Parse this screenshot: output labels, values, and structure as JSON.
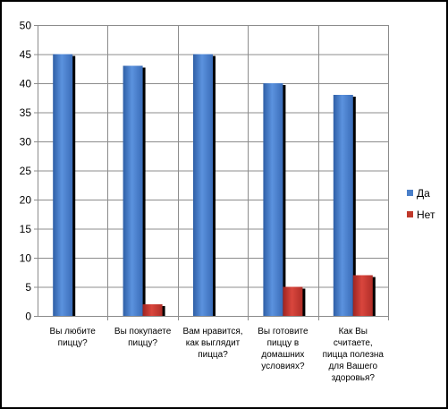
{
  "chart_data": {
    "type": "bar",
    "categories": [
      [
        "Вы любите",
        "пиццу?"
      ],
      [
        "Вы покупаете",
        "пиццу?"
      ],
      [
        "Вам нравится,",
        "как выглядит",
        "пицца?"
      ],
      [
        "Вы готовите",
        "пиццу в",
        "домашних",
        "условиях?"
      ],
      [
        "Как Вы",
        "считаете,",
        "пицца полезна",
        "для Вашего",
        "здоровья?"
      ]
    ],
    "series": [
      {
        "name": "Да",
        "values": [
          45,
          43,
          45,
          40,
          38
        ],
        "color": "#4a7fc9"
      },
      {
        "name": "Нет",
        "values": [
          0,
          2,
          0,
          5,
          7
        ],
        "color": "#c0392b"
      }
    ],
    "y_ticks": [
      "0",
      "5",
      "10",
      "15",
      "20",
      "25",
      "30",
      "35",
      "40",
      "45",
      "50"
    ],
    "ylim": [
      0,
      50
    ],
    "grid": true,
    "legend_position": "right"
  }
}
